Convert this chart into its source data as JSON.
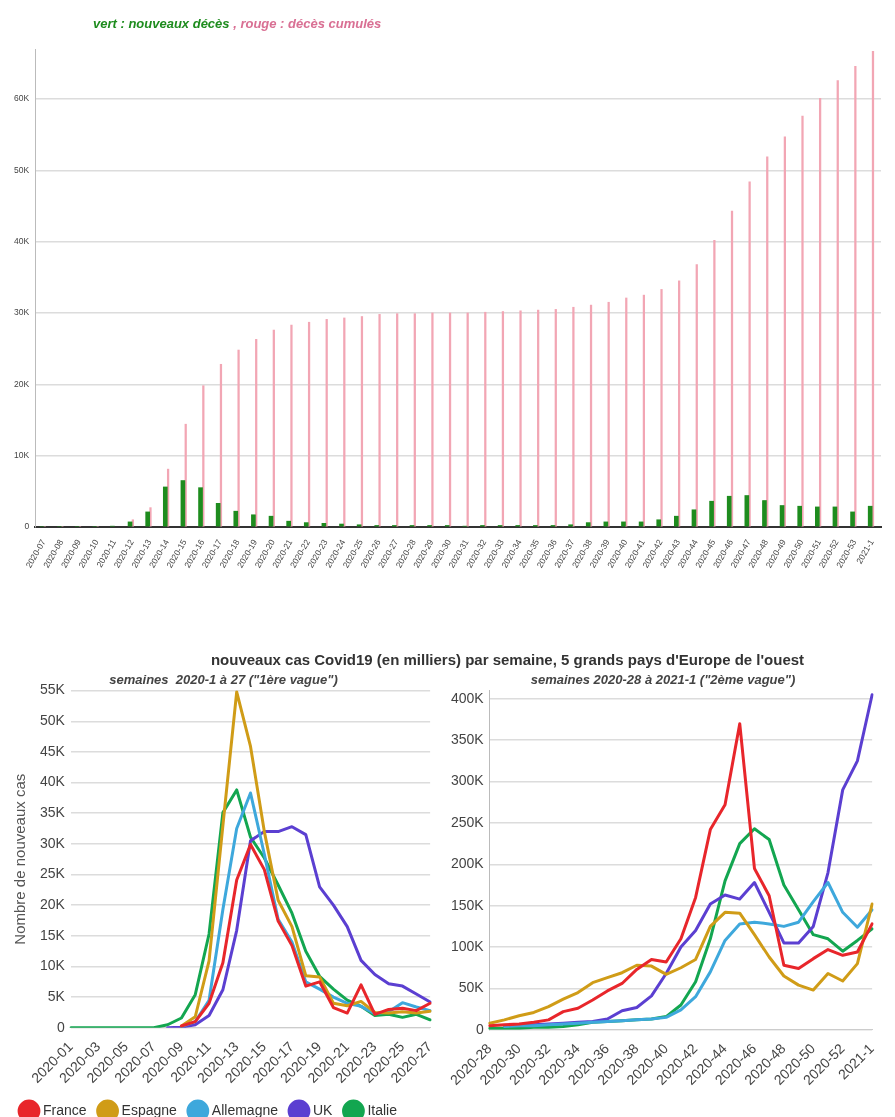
{
  "chart_data": [
    {
      "type": "bar",
      "title": "vert : nouveaux décès , rouge : décès cumulés",
      "categories": [
        "2020-07",
        "2020-08",
        "2020-09",
        "2020-10",
        "2020-11",
        "2020-12",
        "2020-13",
        "2020-14",
        "2020-15",
        "2020-16",
        "2020-17",
        "2020-18",
        "2020-19",
        "2020-20",
        "2020-21",
        "2020-22",
        "2020-23",
        "2020-24",
        "2020-25",
        "2020-26",
        "2020-27",
        "2020-28",
        "2020-29",
        "2020-30",
        "2020-31",
        "2020-32",
        "2020-33",
        "2020-34",
        "2020-35",
        "2020-36",
        "2020-37",
        "2020-38",
        "2020-39",
        "2020-40",
        "2020-41",
        "2020-42",
        "2020-43",
        "2020-44",
        "2020-45",
        "2020-46",
        "2020-47",
        "2020-48",
        "2020-49",
        "2020-50",
        "2020-51",
        "2020-52",
        "2020-53",
        "2021-1"
      ],
      "series": [
        {
          "color": "#1e8c1e",
          "values": [
            0,
            0,
            0,
            0,
            100,
            700,
            2100,
            5600,
            6500,
            5500,
            3300,
            2200,
            1700,
            1500,
            800,
            600,
            500,
            400,
            300,
            200,
            200,
            200,
            200,
            200,
            100,
            200,
            200,
            200,
            200,
            200,
            300,
            600,
            700,
            700,
            700,
            1000,
            1500,
            2400,
            3600,
            4300,
            4400,
            3700,
            3000,
            2900,
            2800,
            2800,
            2100,
            2900
          ]
        },
        {
          "color": "#f2a6b4",
          "values": [
            0,
            0,
            0,
            0,
            null,
            1000,
            2700,
            8100,
            14400,
            19800,
            22800,
            24800,
            26300,
            27600,
            28300,
            28700,
            29100,
            29300,
            29500,
            29800,
            29900,
            29900,
            30000,
            30000,
            30000,
            30100,
            30200,
            30300,
            30400,
            30500,
            30800,
            31100,
            31500,
            32100,
            32500,
            33300,
            34500,
            36800,
            40200,
            44300,
            48400,
            51900,
            54700,
            57600,
            60100,
            62600,
            64600,
            66700
          ]
        }
      ],
      "ylim": [
        0,
        67000
      ],
      "yticks": [
        {
          "value": 0,
          "label": "0"
        },
        {
          "value": 10000,
          "label": "10K"
        },
        {
          "value": 20000,
          "label": "20K"
        },
        {
          "value": 30000,
          "label": "30K"
        },
        {
          "value": 40000,
          "label": "40K"
        },
        {
          "value": 50000,
          "label": "50K"
        },
        {
          "value": 60000,
          "label": "60K"
        }
      ],
      "grid": "y"
    },
    {
      "type": "line",
      "title": "nouveaux cas Covid19 (en milliers) par semaine, 5 grands pays d'Europe de l'ouest",
      "subtitle": "semaines  2020-1 à 27 (\"1ère vague\")",
      "ylabel": "Nombre de nouveaux cas",
      "categories": [
        "2020-01",
        null,
        "2020-03",
        null,
        "2020-05",
        null,
        "2020-07",
        null,
        "2020-09",
        null,
        "2020-11",
        null,
        "2020-13",
        null,
        "2020-15",
        null,
        "2020-17",
        null,
        "2020-19",
        null,
        "2020-21",
        null,
        "2020-23",
        null,
        "2020-25",
        null,
        "2020-27"
      ],
      "series": [
        {
          "name": "France",
          "color": "#e8262b",
          "values": [
            null,
            null,
            null,
            null,
            null,
            null,
            null,
            null,
            300,
            1000,
            4000,
            10600,
            24100,
            29900,
            25800,
            17400,
            13400,
            6800,
            7500,
            3300,
            2400,
            7000,
            2200,
            3000,
            3200,
            2800,
            4000
          ]
        },
        {
          "name": "Espagne",
          "color": "#d09c17",
          "values": [
            null,
            null,
            null,
            null,
            null,
            null,
            null,
            null,
            300,
            1800,
            10900,
            33000,
            54800,
            45900,
            32000,
            20800,
            16500,
            8500,
            8300,
            4000,
            3600,
            4300,
            2500,
            2400,
            2600,
            2400,
            2700
          ]
        },
        {
          "name": "Allemagne",
          "color": "#3ea8dc",
          "values": [
            null,
            null,
            null,
            null,
            null,
            null,
            null,
            null,
            200,
            1000,
            4500,
            19300,
            32500,
            38300,
            28300,
            17700,
            14000,
            7500,
            6300,
            5000,
            4000,
            3500,
            2300,
            2600,
            4100,
            3400,
            2800
          ]
        },
        {
          "name": "UK",
          "color": "#5b3fd1",
          "values": [
            null,
            null,
            null,
            null,
            null,
            null,
            null,
            0,
            100,
            500,
            2000,
            6200,
            15900,
            30500,
            32000,
            32000,
            32800,
            31500,
            23000,
            20000,
            16500,
            11000,
            8700,
            7200,
            6800,
            5500,
            4200
          ]
        },
        {
          "name": "Italie",
          "color": "#13a650",
          "values": [
            0,
            0,
            0,
            0,
            0,
            0,
            0,
            500,
            1600,
            5400,
            15300,
            35100,
            38800,
            31100,
            27700,
            23300,
            18700,
            12500,
            8400,
            6300,
            4500,
            3500,
            2000,
            2200,
            1700,
            2200,
            1300
          ]
        }
      ],
      "ylim": [
        0,
        55000
      ],
      "yticks": [
        {
          "value": 0,
          "label": "0"
        },
        {
          "value": 5000,
          "label": "5K"
        },
        {
          "value": 10000,
          "label": "10K"
        },
        {
          "value": 15000,
          "label": "15K"
        },
        {
          "value": 20000,
          "label": "20K"
        },
        {
          "value": 25000,
          "label": "25K"
        },
        {
          "value": 30000,
          "label": "30K"
        },
        {
          "value": 35000,
          "label": "35K"
        },
        {
          "value": 40000,
          "label": "40K"
        },
        {
          "value": 45000,
          "label": "45K"
        },
        {
          "value": 50000,
          "label": "50K"
        },
        {
          "value": 55000,
          "label": "55K"
        }
      ],
      "grid": "y",
      "legend": "bottom"
    },
    {
      "type": "line",
      "subtitle": "semaines 2020-28 à 2021-1 (\"2ème vague\")",
      "categories": [
        "2020-28",
        null,
        "2020-30",
        null,
        "2020-32",
        null,
        "2020-34",
        null,
        "2020-36",
        null,
        "2020-38",
        null,
        "2020-40",
        null,
        "2020-42",
        null,
        "2020-44",
        null,
        "2020-46",
        null,
        "2020-48",
        null,
        "2020-50",
        null,
        "2020-52",
        null,
        "2021-1"
      ],
      "series": [
        {
          "color": "#e8262b",
          "values": [
            5000,
            6000,
            7000,
            9000,
            12000,
            22000,
            26000,
            36000,
            47000,
            56000,
            73000,
            85000,
            82000,
            110000,
            160000,
            242000,
            272000,
            370000,
            195000,
            162000,
            78000,
            74000,
            86000,
            97000,
            90000,
            94000,
            128000
          ]
        },
        {
          "color": "#d09c17",
          "values": [
            8000,
            12000,
            17000,
            21000,
            28000,
            37000,
            45000,
            57000,
            63000,
            69000,
            78000,
            77000,
            67000,
            75000,
            85000,
            125000,
            142000,
            141000,
            115000,
            88000,
            65000,
            54000,
            48000,
            68000,
            59000,
            80000,
            152000
          ]
        },
        {
          "color": "#3ea8dc",
          "values": [
            null,
            4000,
            5000,
            5000,
            6000,
            7000,
            8000,
            9000,
            10000,
            11000,
            12000,
            13000,
            15000,
            24000,
            40000,
            70000,
            108000,
            128000,
            130000,
            128000,
            125000,
            130000,
            155000,
            178000,
            142000,
            124000,
            145000
          ]
        },
        {
          "color": "#5b3fd1",
          "values": [
            null,
            5000,
            6000,
            6000,
            7000,
            8000,
            9000,
            10000,
            13000,
            23000,
            27000,
            41000,
            68000,
            100000,
            120000,
            152000,
            163000,
            158000,
            178000,
            142000,
            105000,
            105000,
            125000,
            190000,
            290000,
            325000,
            405000
          ]
        },
        {
          "color": "#13a650",
          "values": [
            2000,
            2000,
            2000,
            3000,
            3000,
            4000,
            6000,
            9000,
            10000,
            11000,
            12000,
            13000,
            16000,
            30000,
            58000,
            110000,
            180000,
            225000,
            243000,
            230000,
            175000,
            145000,
            115000,
            110000,
            95000,
            108000,
            122000
          ]
        }
      ],
      "ylim": [
        0,
        410000
      ],
      "yticks": [
        {
          "value": 0,
          "label": "0"
        },
        {
          "value": 50000,
          "label": "50K"
        },
        {
          "value": 100000,
          "label": "100K"
        },
        {
          "value": 150000,
          "label": "150K"
        },
        {
          "value": 200000,
          "label": "200K"
        },
        {
          "value": 250000,
          "label": "250K"
        },
        {
          "value": 300000,
          "label": "300K"
        },
        {
          "value": 350000,
          "label": "350K"
        },
        {
          "value": 400000,
          "label": "400K"
        }
      ],
      "grid": "y"
    }
  ]
}
